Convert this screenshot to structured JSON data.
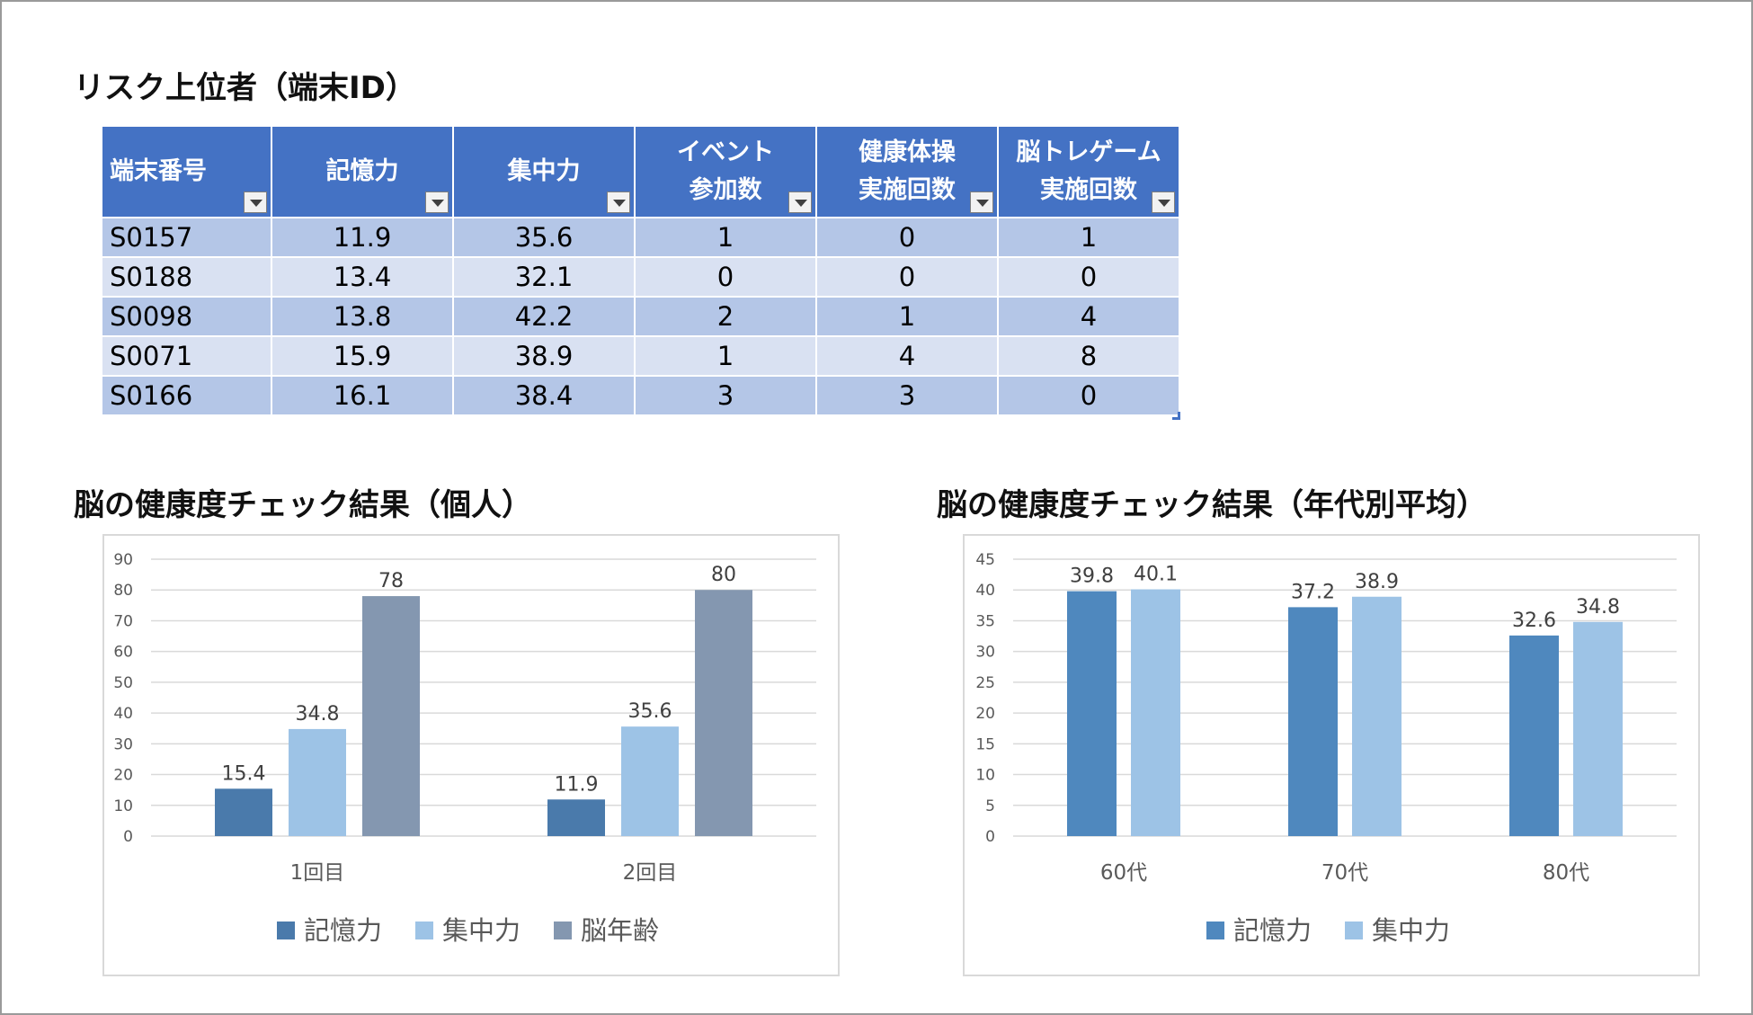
{
  "risk_table": {
    "title": "リスク上位者（端末ID）",
    "headers": [
      {
        "line1": "端末番号",
        "line2": ""
      },
      {
        "line1": "記憶力",
        "line2": ""
      },
      {
        "line1": "集中力",
        "line2": ""
      },
      {
        "line1": "イベント",
        "line2": "参加数"
      },
      {
        "line1": "健康体操",
        "line2": "実施回数"
      },
      {
        "line1": "脳トレゲーム",
        "line2": "実施回数"
      }
    ],
    "rows": [
      [
        "S0157",
        "11.9",
        "35.6",
        "1",
        "0",
        "1"
      ],
      [
        "S0188",
        "13.4",
        "32.1",
        "0",
        "0",
        "0"
      ],
      [
        "S0098",
        "13.8",
        "42.2",
        "2",
        "1",
        "4"
      ],
      [
        "S0071",
        "15.9",
        "38.9",
        "1",
        "4",
        "8"
      ],
      [
        "S0166",
        "16.1",
        "38.4",
        "3",
        "3",
        "0"
      ]
    ]
  },
  "chart1": {
    "title": "脳の健康度チェック結果（個人）"
  },
  "chart2": {
    "title": "脳の健康度チェック結果（年代別平均）"
  },
  "chart_data": [
    {
      "type": "bar",
      "title": "脳の健康度チェック結果（個人）",
      "categories": [
        "1回目",
        "2回目"
      ],
      "series": [
        {
          "name": "記憶力",
          "values": [
            15.4,
            11.9
          ],
          "color": "#4a7aab"
        },
        {
          "name": "集中力",
          "values": [
            34.8,
            35.6
          ],
          "color": "#9dc3e6"
        },
        {
          "name": "脳年齢",
          "values": [
            78,
            80
          ],
          "color": "#8497b0"
        }
      ],
      "ylim": [
        0,
        90
      ],
      "yticks": [
        0,
        10,
        20,
        30,
        40,
        50,
        60,
        70,
        80,
        90
      ],
      "grid": true,
      "legend": "bottom"
    },
    {
      "type": "bar",
      "title": "脳の健康度チェック結果（年代別平均）",
      "categories": [
        "60代",
        "70代",
        "80代"
      ],
      "series": [
        {
          "name": "記憶力",
          "values": [
            39.8,
            37.2,
            32.6
          ],
          "color": "#4f88be"
        },
        {
          "name": "集中力",
          "values": [
            40.1,
            38.9,
            34.8
          ],
          "color": "#9dc3e6"
        }
      ],
      "ylim": [
        0,
        45
      ],
      "yticks": [
        0,
        5,
        10,
        15,
        20,
        25,
        30,
        35,
        40,
        45
      ],
      "grid": true,
      "legend": "bottom"
    }
  ]
}
